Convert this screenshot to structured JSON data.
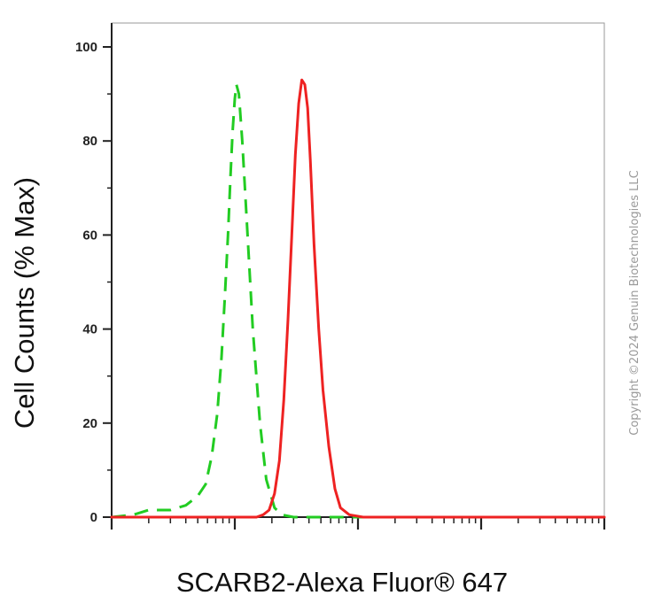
{
  "watermark": "Copyright ©2024 Genuin Biotechnologies LLC",
  "chart_data": {
    "type": "line",
    "xlabel": "SCARB2-Alexa Fluor® 647",
    "ylabel": "Cell Counts (% Max)",
    "xscale": "log",
    "xlim": [
      1,
      10000
    ],
    "ylim": [
      0,
      100
    ],
    "yticks": [
      0,
      20,
      40,
      60,
      80,
      100
    ],
    "x_tick_labels": [],
    "grid": false,
    "legend": "none",
    "series": [
      {
        "color": "#22cc22",
        "style": "dashed",
        "points": [
          [
            1,
            0
          ],
          [
            1.5,
            0.5
          ],
          [
            2,
            1.5
          ],
          [
            3,
            1.5
          ],
          [
            4,
            2.5
          ],
          [
            5,
            4.5
          ],
          [
            5.8,
            7
          ],
          [
            6.5,
            13
          ],
          [
            7.2,
            22
          ],
          [
            7.8,
            34
          ],
          [
            8.3,
            47
          ],
          [
            8.8,
            60
          ],
          [
            9.2,
            72
          ],
          [
            9.6,
            82
          ],
          [
            10,
            89
          ],
          [
            10.3,
            92
          ],
          [
            10.8,
            90
          ],
          [
            11.5,
            80
          ],
          [
            12.5,
            63
          ],
          [
            14,
            40
          ],
          [
            16,
            20
          ],
          [
            18,
            8
          ],
          [
            21,
            2
          ],
          [
            24,
            0.5
          ],
          [
            30,
            0
          ],
          [
            10000,
            0
          ]
        ]
      },
      {
        "color": "#ee2222",
        "style": "solid",
        "points": [
          [
            1,
            0
          ],
          [
            15,
            0
          ],
          [
            17,
            0.5
          ],
          [
            19,
            1.5
          ],
          [
            21,
            5
          ],
          [
            23,
            12
          ],
          [
            25,
            25
          ],
          [
            27,
            42
          ],
          [
            29,
            60
          ],
          [
            31,
            77
          ],
          [
            33,
            88
          ],
          [
            35,
            93
          ],
          [
            37,
            92
          ],
          [
            39,
            87
          ],
          [
            41,
            76
          ],
          [
            44,
            58
          ],
          [
            48,
            40
          ],
          [
            52,
            27
          ],
          [
            58,
            15
          ],
          [
            65,
            6
          ],
          [
            72,
            2
          ],
          [
            85,
            0.5
          ],
          [
            110,
            0
          ],
          [
            10000,
            0
          ]
        ]
      }
    ]
  }
}
